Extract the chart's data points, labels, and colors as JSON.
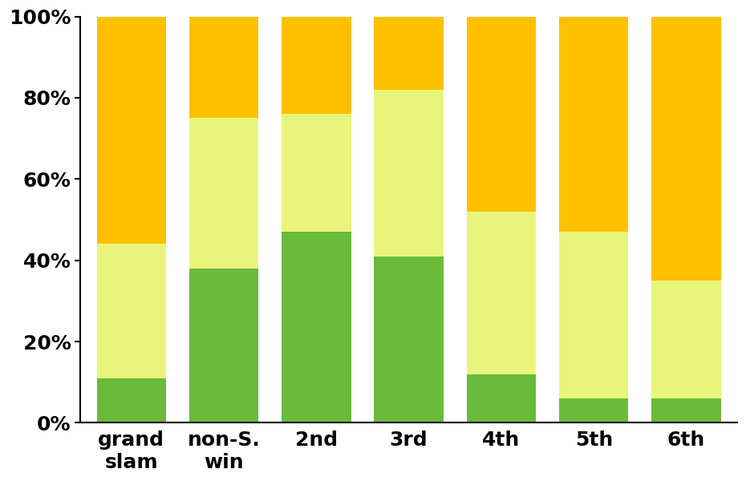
{
  "categories": [
    "grand\nslam",
    "non-S.\nwin",
    "2nd",
    "3rd",
    "4th",
    "5th",
    "6th"
  ],
  "no_card": [
    11,
    38,
    47,
    41,
    12,
    6,
    6
  ],
  "one_card": [
    33,
    37,
    29,
    41,
    40,
    41,
    29
  ],
  "two_plus_card": [
    56,
    25,
    24,
    18,
    48,
    53,
    65
  ],
  "colors": [
    "#6aba3c",
    "#e8f57a",
    "#ffc000"
  ],
  "ylabel_ticks": [
    "0%",
    "20%",
    "40%",
    "60%",
    "80%",
    "100%"
  ],
  "ytick_vals": [
    0,
    20,
    40,
    60,
    80,
    100
  ],
  "bar_width": 0.75,
  "background_color": "#ffffff",
  "tick_fontsize": 18,
  "label_fontsize": 18
}
